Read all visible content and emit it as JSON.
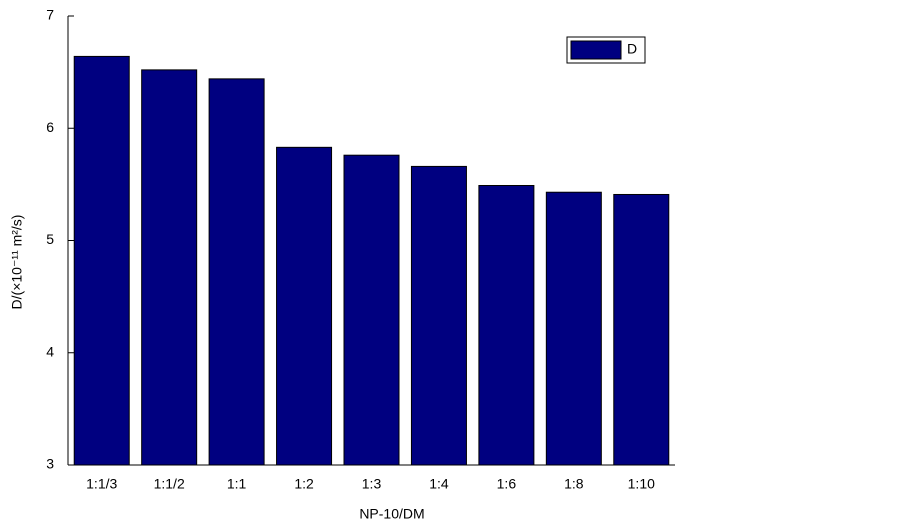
{
  "chart_data": {
    "type": "bar",
    "x_label": "NP-10/DM",
    "y_label": "D/(×10⁻¹¹ m²/s)",
    "categories": [
      "1:1/3",
      "1:1/2",
      "1:1",
      "1:2",
      "1:3",
      "1:4",
      "1:6",
      "1:8",
      "1:10"
    ],
    "series": [
      {
        "name": "D",
        "color": "#000080",
        "values": [
          6.64,
          6.52,
          6.44,
          5.83,
          5.76,
          5.66,
          5.49,
          5.43,
          5.41
        ]
      }
    ],
    "ylim": [
      3,
      7
    ],
    "yticks": [
      3,
      4,
      5,
      6,
      7
    ],
    "grid": false,
    "legend": "upper right"
  }
}
